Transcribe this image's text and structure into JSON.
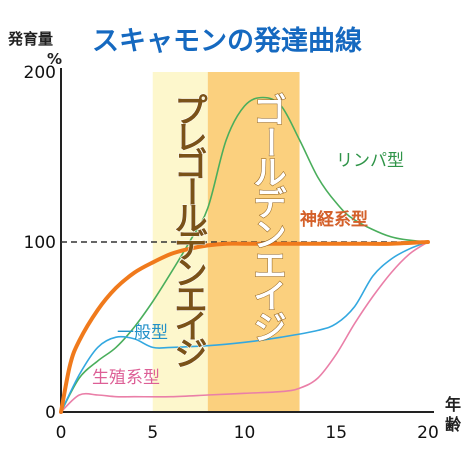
{
  "chart_data": {
    "type": "line",
    "title": "スキャモンの発達曲線",
    "ylabel": "発育量",
    "yunit": "%",
    "xlabel": "年齢",
    "xlim": [
      0,
      20
    ],
    "ylim": [
      0,
      200
    ],
    "xticks": [
      0,
      5,
      10,
      15,
      20
    ],
    "yticks": [
      0,
      100,
      200
    ],
    "reference_line": {
      "y": 100,
      "style": "dashed"
    },
    "bands": [
      {
        "label": "プレゴールデンエイジ",
        "x_range": [
          5,
          8
        ],
        "color": "#fdf7cc"
      },
      {
        "label": "ゴールデンエイジ",
        "x_range": [
          8,
          13
        ],
        "color": "#fbd07e"
      }
    ],
    "series": [
      {
        "name": "神経系型",
        "color": "#f07a1c",
        "x": [
          0,
          0.5,
          1,
          2,
          3,
          4,
          5,
          6,
          7,
          8,
          9,
          10,
          12,
          14,
          16,
          18,
          20
        ],
        "y": [
          0,
          28,
          42,
          60,
          73,
          82,
          88,
          93,
          96,
          98,
          99,
          99,
          99,
          99,
          99,
          99,
          100
        ]
      },
      {
        "name": "リンパ型",
        "color": "#4aae5c",
        "x": [
          0,
          1,
          2,
          3,
          4,
          5,
          6,
          7,
          8,
          9,
          10,
          11,
          12,
          13,
          14,
          15,
          16,
          18,
          20
        ],
        "y": [
          0,
          20,
          30,
          38,
          50,
          65,
          82,
          100,
          120,
          160,
          180,
          185,
          180,
          160,
          138,
          123,
          113,
          103,
          100
        ]
      },
      {
        "name": "一般型",
        "color": "#33a8e0",
        "x": [
          0,
          1,
          2,
          3,
          4,
          5,
          6,
          8,
          10,
          12,
          14,
          15,
          16,
          17,
          18,
          19,
          20
        ],
        "y": [
          0,
          22,
          38,
          44,
          43,
          38,
          38,
          39,
          41,
          44,
          48,
          52,
          62,
          80,
          90,
          96,
          100
        ]
      },
      {
        "name": "生殖系型",
        "color": "#ea7fa8",
        "x": [
          0,
          1,
          2,
          3,
          4,
          6,
          8,
          10,
          12,
          13,
          14,
          15,
          16,
          17,
          18,
          19,
          20
        ],
        "y": [
          0,
          10,
          10,
          9,
          9,
          9,
          10,
          11,
          12,
          14,
          20,
          34,
          52,
          68,
          82,
          93,
          100
        ]
      }
    ]
  }
}
